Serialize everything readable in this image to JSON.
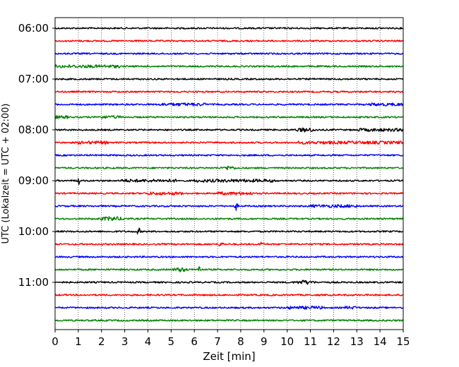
{
  "chart_data": {
    "type": "line",
    "subtype": "helicorder",
    "title": "",
    "xlabel": "Zeit  [min]",
    "ylabel": "UTC (Lokalzeit = UTC + 02:00)",
    "xlim": [
      0,
      15
    ],
    "x_ticks": [
      "0",
      "1",
      "2",
      "3",
      "4",
      "5",
      "6",
      "7",
      "8",
      "9",
      "10",
      "11",
      "12",
      "13",
      "14",
      "15"
    ],
    "y_tick_labels": [
      "06:00",
      "07:00",
      "08:00",
      "09:00",
      "10:00",
      "11:00"
    ],
    "trace_start_times": [
      "06:00",
      "06:15",
      "06:30",
      "06:45",
      "07:00",
      "07:15",
      "07:30",
      "07:45",
      "08:00",
      "08:15",
      "08:30",
      "08:45",
      "09:00",
      "09:15",
      "09:30",
      "09:45",
      "10:00",
      "10:15",
      "10:30",
      "10:45",
      "11:00",
      "11:15",
      "11:30",
      "11:45"
    ],
    "trace_colors": [
      "#000000",
      "#ff0000",
      "#0000ff",
      "#008000"
    ],
    "vertical_grid": "dotted",
    "events": [
      {
        "trace_start": "06:45",
        "x_min": [
          0.0,
          2.8
        ],
        "level": "elevated"
      },
      {
        "trace_start": "07:30",
        "x_min": [
          4.5,
          6.5
        ],
        "level": "elevated"
      },
      {
        "trace_start": "07:30",
        "x_min": [
          13.5,
          15.0
        ],
        "level": "elevated"
      },
      {
        "trace_start": "07:45",
        "x_min": [
          0.0,
          0.6
        ],
        "level": "elevated"
      },
      {
        "trace_start": "07:45",
        "x_min": [
          1.8,
          2.8
        ],
        "level": "elevated"
      },
      {
        "trace_start": "08:00",
        "x_min": [
          10.0,
          11.6
        ],
        "level": "burst"
      },
      {
        "trace_start": "08:00",
        "x_min": [
          13.0,
          15.0
        ],
        "level": "elevated"
      },
      {
        "trace_start": "08:15",
        "x_min": [
          1.0,
          2.3
        ],
        "level": "elevated"
      },
      {
        "trace_start": "08:15",
        "x_min": [
          10.5,
          15.0
        ],
        "level": "elevated"
      },
      {
        "trace_start": "08:45",
        "x_min": [
          7.0,
          8.0
        ],
        "level": "burst"
      },
      {
        "trace_start": "09:00",
        "x_min": [
          0.9,
          1.1
        ],
        "level": "spike"
      },
      {
        "trace_start": "09:00",
        "x_min": [
          2.8,
          5.2
        ],
        "level": "elevated"
      },
      {
        "trace_start": "09:00",
        "x_min": [
          6.0,
          9.5
        ],
        "level": "elevated"
      },
      {
        "trace_start": "09:15",
        "x_min": [
          4.0,
          5.5
        ],
        "level": "elevated"
      },
      {
        "trace_start": "09:15",
        "x_min": [
          7.0,
          8.5
        ],
        "level": "elevated"
      },
      {
        "trace_start": "09:30",
        "x_min": [
          7.7,
          7.9
        ],
        "level": "spike"
      },
      {
        "trace_start": "09:30",
        "x_min": [
          11.0,
          13.0
        ],
        "level": "elevated"
      },
      {
        "trace_start": "09:45",
        "x_min": [
          1.4,
          3.5
        ],
        "level": "burst"
      },
      {
        "trace_start": "10:00",
        "x_min": [
          3.5,
          3.7
        ],
        "level": "spike"
      },
      {
        "trace_start": "10:15",
        "x_min": [
          6.9,
          7.4
        ],
        "level": "burst"
      },
      {
        "trace_start": "10:15",
        "x_min": [
          8.75,
          8.95
        ],
        "level": "spike"
      },
      {
        "trace_start": "10:45",
        "x_min": [
          4.8,
          6.0
        ],
        "level": "burst"
      },
      {
        "trace_start": "10:45",
        "x_min": [
          6.1,
          6.3
        ],
        "level": "spike"
      },
      {
        "trace_start": "11:00",
        "x_min": [
          10.0,
          11.5
        ],
        "level": "burst"
      },
      {
        "trace_start": "11:30",
        "x_min": [
          10.0,
          11.5
        ],
        "level": "elevated"
      },
      {
        "trace_start": "11:30",
        "x_min": [
          12.5,
          13.0
        ],
        "level": "elevated"
      }
    ]
  }
}
